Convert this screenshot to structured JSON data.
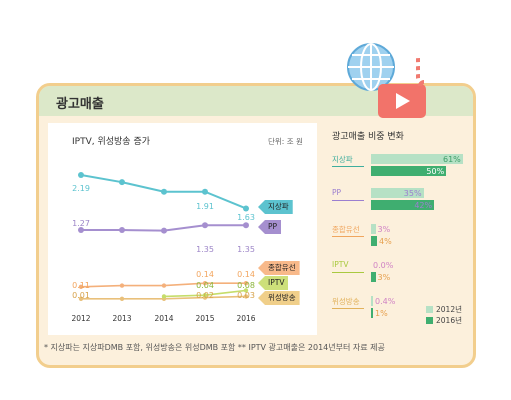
{
  "card_title": "광고매출",
  "footnote": "* 지상파는 지상파DMB 포함, 위성방송은 위성DMB 포함   ** IPTV 광고매출은 2014년부터 자료 제공",
  "chart_data": [
    {
      "type": "line",
      "title": "IPTV, 위성방송 증가",
      "unit": "단위: 조 원",
      "x": [
        "2012",
        "2013",
        "2014",
        "2015",
        "2016"
      ],
      "ylim": [
        0,
        2.4
      ],
      "series": [
        {
          "name": "지상파",
          "values": [
            2.19,
            2.07,
            1.91,
            1.91,
            1.63
          ],
          "color": "#5cc3cf",
          "labels": [
            "2.19",
            null,
            null,
            "1.91",
            "1.63"
          ]
        },
        {
          "name": "PP",
          "values": [
            1.27,
            1.27,
            1.26,
            1.35,
            1.35
          ],
          "color": "#a58fcf",
          "labels": [
            "1.27",
            null,
            null,
            "1.35",
            "1.35"
          ]
        },
        {
          "name": "종합유선",
          "values": [
            0.11,
            0.12,
            0.12,
            0.14,
            0.14
          ],
          "color": "#f4b07b",
          "labels": [
            "0.11",
            null,
            null,
            "0.14",
            "0.14"
          ]
        },
        {
          "name": "IPTV",
          "values": [
            null,
            null,
            0.03,
            0.04,
            0.08
          ],
          "color": "#c5dd6a",
          "labels": [
            null,
            null,
            null,
            "0.04",
            "0.08"
          ]
        },
        {
          "name": "위성방송",
          "values": [
            0.01,
            0.01,
            0.01,
            0.02,
            0.03
          ],
          "color": "#e9c07b",
          "labels": [
            "0.01",
            null,
            null,
            "0.02",
            "0.03"
          ]
        }
      ]
    },
    {
      "type": "bar",
      "title": "광고매출 비중 변화",
      "categories": [
        "지상파",
        "PP",
        "종합유선",
        "IPTV",
        "위성방송"
      ],
      "series": [
        {
          "name": "2012년",
          "values": [
            61,
            35,
            3,
            0.0,
            0.4
          ],
          "labels": [
            "61%",
            "35%",
            "3%",
            "0.0%",
            "0.4%"
          ],
          "color": "#b6e1c5"
        },
        {
          "name": "2016년",
          "values": [
            50,
            42,
            4,
            3,
            1
          ],
          "labels": [
            "50%",
            "42%",
            "4%",
            "3%",
            "1%"
          ],
          "color": "#3fae70"
        }
      ],
      "category_colors": [
        "#3fae9e",
        "#9b7fd0",
        "#f0a65e",
        "#a9c93f",
        "#e2b25c"
      ]
    }
  ]
}
